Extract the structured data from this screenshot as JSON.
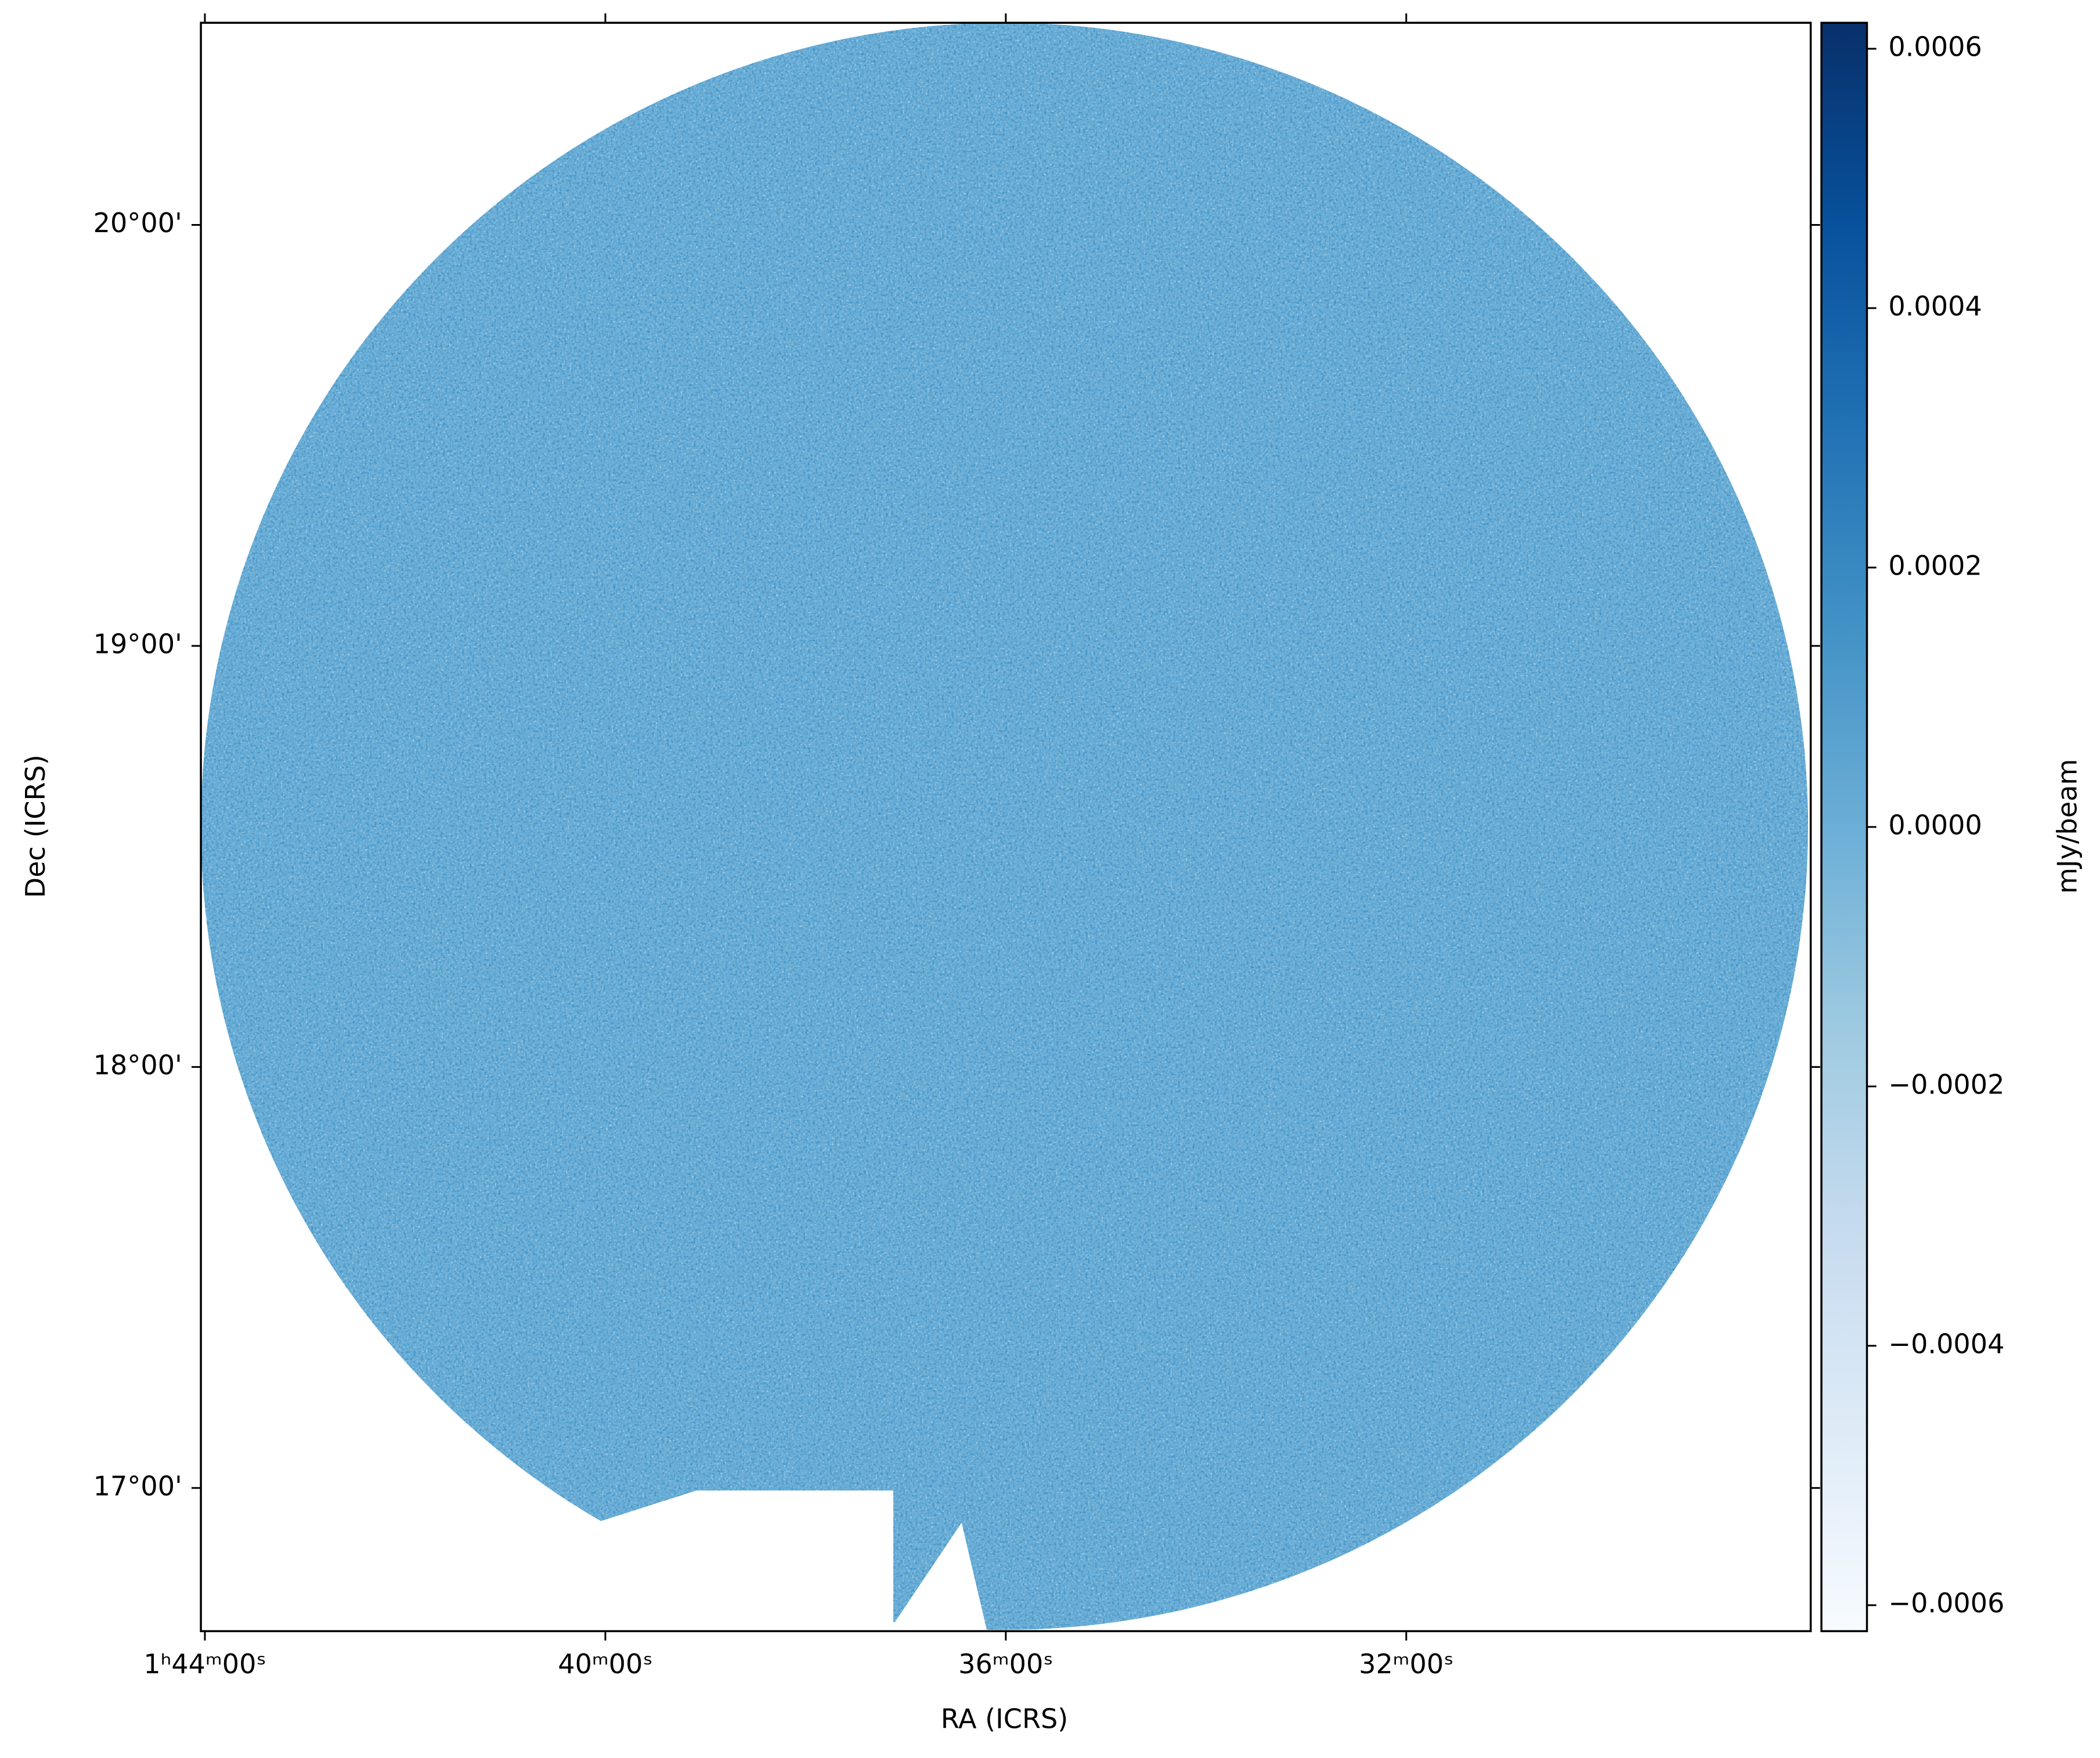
{
  "chart_data": {
    "type": "image",
    "xlabel": "RA (ICRS)",
    "ylabel": "Dec (ICRS)",
    "colorbar_label": "mJy/beam",
    "xlim": [
      26.01,
      21.99
    ],
    "xticks": [
      {
        "value": 26,
        "label": "1ʰ44ᵐ00ˢ"
      },
      {
        "value": 25,
        "label": "40ᵐ00ˢ"
      },
      {
        "value": 24,
        "label": "36ᵐ00ˢ"
      },
      {
        "value": 23,
        "label": "32ᵐ00ˢ"
      }
    ],
    "ylim": [
      16.66,
      20.48
    ],
    "yticks": [
      {
        "value": 17,
        "label": "17°00'"
      },
      {
        "value": 18,
        "label": "18°00'"
      },
      {
        "value": 19,
        "label": "19°00'"
      },
      {
        "value": 20,
        "label": "20°00'"
      }
    ],
    "clim": [
      -0.00062,
      0.00062
    ],
    "cticks": [
      {
        "value": -0.0006,
        "label": "−0.0006"
      },
      {
        "value": -0.0004,
        "label": "−0.0004"
      },
      {
        "value": -0.0002,
        "label": "−0.0002"
      },
      {
        "value": 0,
        "label": "0.0000"
      },
      0.0002,
      0.0004,
      0.0006
    ],
    "colormap": [
      "#f7fbff",
      "#deebf7",
      "#c6dbef",
      "#9ecae1",
      "#6baed6",
      "#4292c6",
      "#2171b5",
      "#08519c",
      "#08306b"
    ]
  }
}
